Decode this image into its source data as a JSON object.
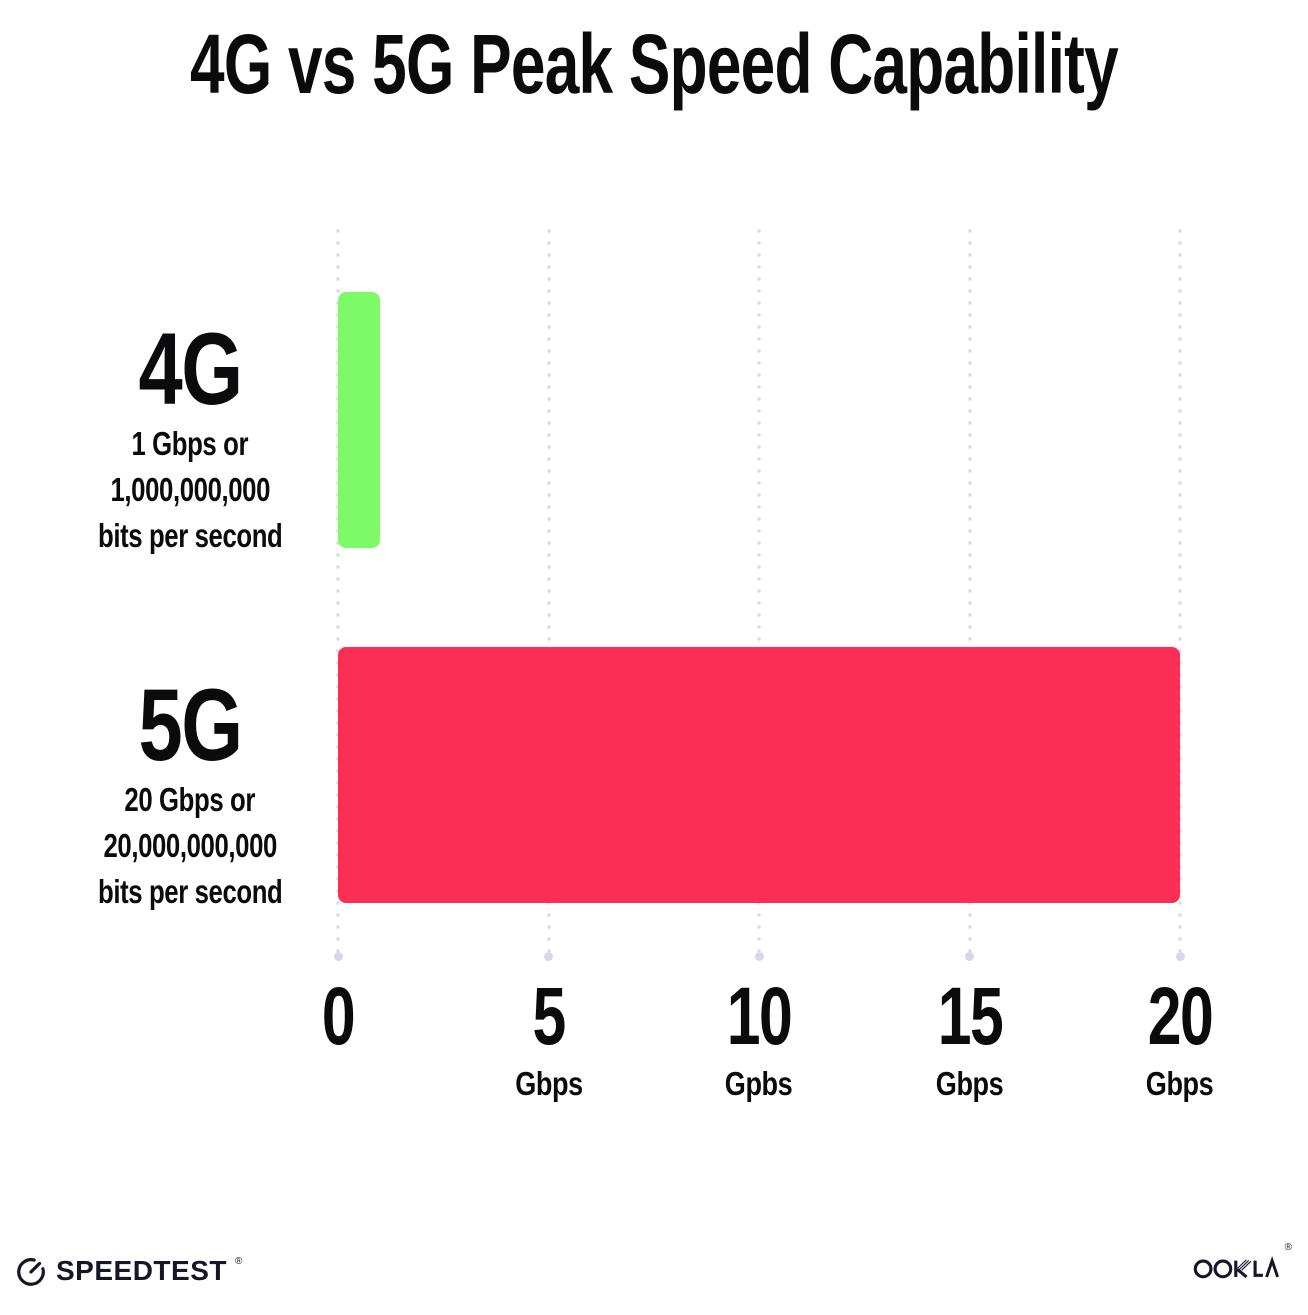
{
  "title": "4G vs 5G Peak Speed Capability",
  "chart_data": {
    "type": "bar",
    "orientation": "horizontal",
    "title": "4G vs 5G Peak Speed Capability",
    "categories": [
      "4G",
      "5G"
    ],
    "values": [
      1,
      20
    ],
    "value_unit": "Gbps",
    "xlim": [
      0,
      20
    ],
    "grid": "dotted vertical gridlines every 5 Gbps",
    "legend": "none",
    "bar_colors": [
      "#7ef968",
      "#fd2e56"
    ],
    "row_labels": [
      {
        "name": "4G",
        "sublabel_lines": [
          "1 Gbps or",
          "1,000,000,000",
          "bits per second"
        ]
      },
      {
        "name": "5G",
        "sublabel_lines": [
          "20 Gbps or",
          "20,000,000,000",
          "bits per second"
        ]
      }
    ],
    "x_ticks": [
      {
        "value": "0",
        "unit": ""
      },
      {
        "value": "5",
        "unit": "Gbps"
      },
      {
        "value": "10",
        "unit": "Gpbs"
      },
      {
        "value": "15",
        "unit": "Gbps"
      },
      {
        "value": "20",
        "unit": "Gbps"
      }
    ]
  },
  "footer": {
    "speedtest_label": "SPEEDTEST",
    "ookla_label": "OOKLA",
    "trademark_symbol": "®"
  }
}
